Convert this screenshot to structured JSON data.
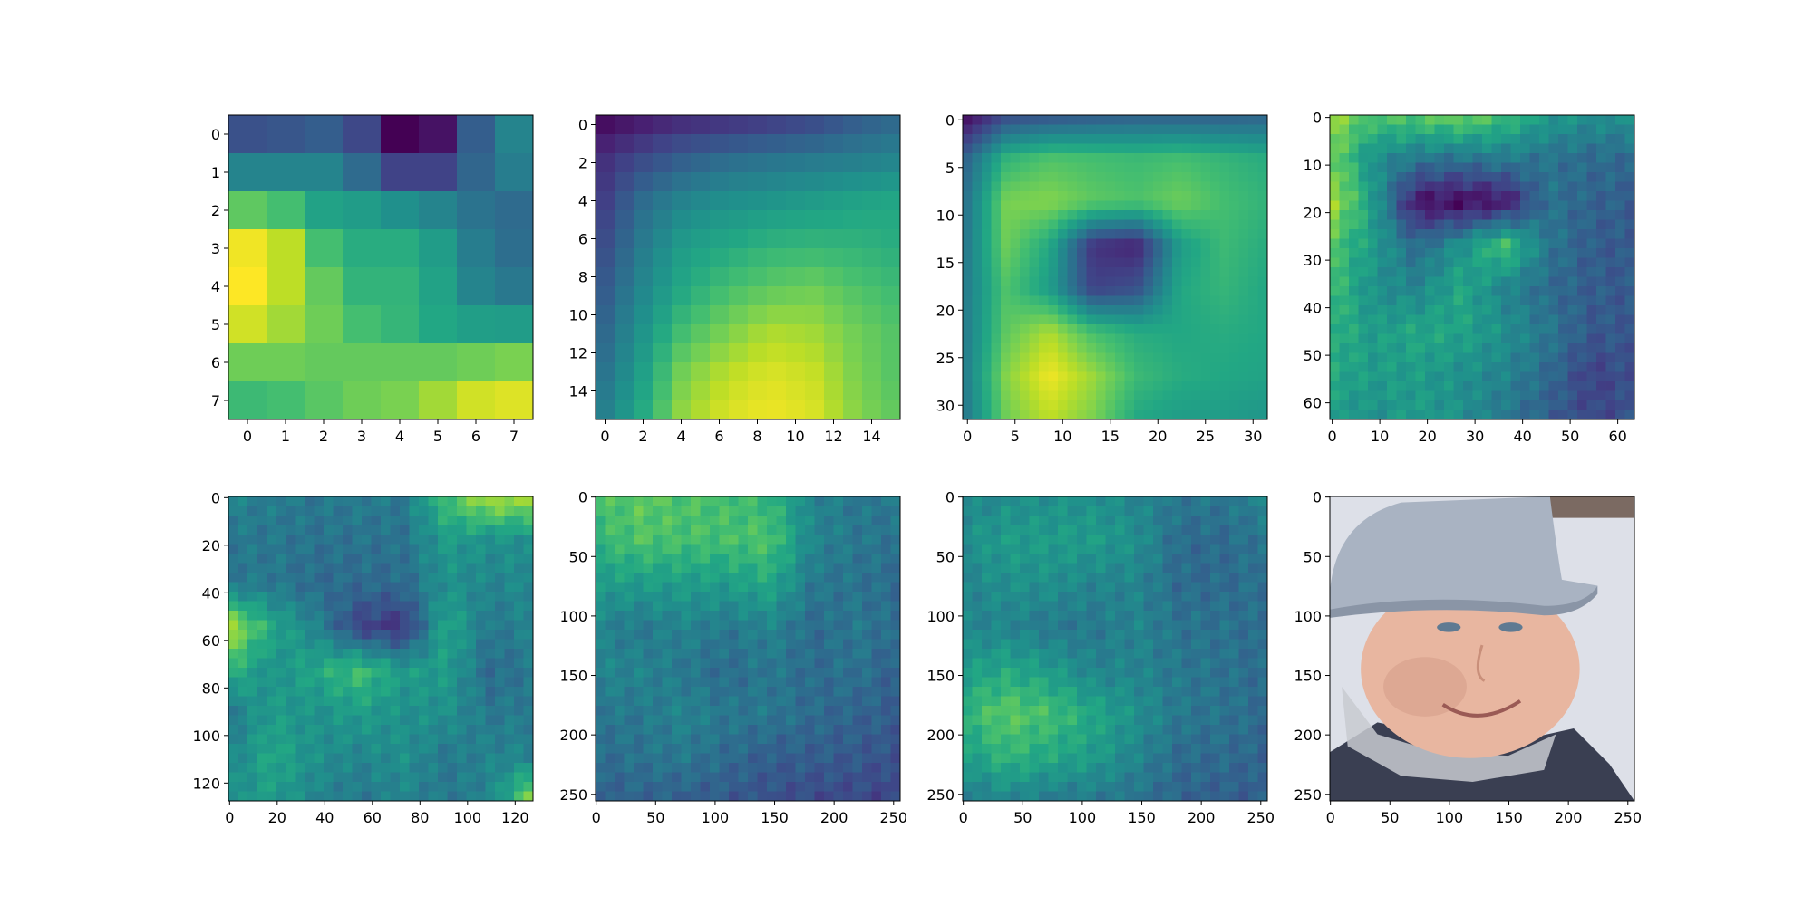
{
  "figure": {
    "colormap": "viridis",
    "background": "#ffffff"
  },
  "chart_data": [
    {
      "type": "heatmap",
      "resolution": 8,
      "xticks": [
        0,
        1,
        2,
        3,
        4,
        5,
        6,
        7
      ],
      "yticks": [
        0,
        1,
        2,
        3,
        4,
        5,
        6,
        7
      ],
      "grid": false,
      "values": [
        [
          0.25,
          0.27,
          0.3,
          0.22,
          0.0,
          0.05,
          0.3,
          0.45
        ],
        [
          0.45,
          0.45,
          0.45,
          0.35,
          0.2,
          0.2,
          0.33,
          0.42
        ],
        [
          0.75,
          0.7,
          0.58,
          0.55,
          0.5,
          0.45,
          0.38,
          0.35
        ],
        [
          0.98,
          0.9,
          0.7,
          0.62,
          0.62,
          0.55,
          0.42,
          0.36
        ],
        [
          1.0,
          0.9,
          0.76,
          0.65,
          0.65,
          0.58,
          0.45,
          0.4
        ],
        [
          0.93,
          0.86,
          0.78,
          0.7,
          0.66,
          0.6,
          0.56,
          0.55
        ],
        [
          0.78,
          0.78,
          0.76,
          0.76,
          0.76,
          0.76,
          0.78,
          0.8
        ],
        [
          0.68,
          0.7,
          0.74,
          0.78,
          0.8,
          0.86,
          0.93,
          0.95
        ]
      ]
    },
    {
      "type": "heatmap",
      "resolution": 16,
      "xticks": [
        0,
        2,
        4,
        6,
        8,
        10,
        12,
        14
      ],
      "yticks": [
        0,
        2,
        4,
        6,
        8,
        10,
        12,
        14
      ],
      "grid": false,
      "peaks": [
        {
          "r": 0,
          "c": 0,
          "v": 0.0
        }
      ],
      "pattern": "corner-gradient",
      "coarse": [
        [
          0.0,
          0.05,
          0.1,
          0.12,
          0.15,
          0.2,
          0.28,
          0.33
        ],
        [
          0.12,
          0.22,
          0.3,
          0.35,
          0.38,
          0.4,
          0.42,
          0.45
        ],
        [
          0.15,
          0.35,
          0.45,
          0.5,
          0.52,
          0.55,
          0.58,
          0.6
        ],
        [
          0.2,
          0.4,
          0.55,
          0.6,
          0.65,
          0.66,
          0.65,
          0.62
        ],
        [
          0.25,
          0.45,
          0.6,
          0.7,
          0.75,
          0.78,
          0.72,
          0.68
        ],
        [
          0.3,
          0.5,
          0.7,
          0.8,
          0.88,
          0.86,
          0.78,
          0.72
        ],
        [
          0.35,
          0.55,
          0.8,
          0.9,
          0.95,
          0.92,
          0.8,
          0.72
        ],
        [
          0.4,
          0.6,
          0.85,
          0.95,
          0.98,
          0.95,
          0.82,
          0.75
        ]
      ]
    },
    {
      "type": "heatmap",
      "resolution": 32,
      "xticks": [
        0,
        5,
        10,
        15,
        20,
        25,
        30
      ],
      "yticks": [
        0,
        5,
        10,
        15,
        20,
        25,
        30
      ],
      "grid": false,
      "coarse": [
        [
          0.0,
          0.22,
          0.25,
          0.28,
          0.3,
          0.3,
          0.3,
          0.32
        ],
        [
          0.3,
          0.65,
          0.72,
          0.7,
          0.68,
          0.7,
          0.66,
          0.62
        ],
        [
          0.35,
          0.8,
          0.82,
          0.75,
          0.72,
          0.78,
          0.7,
          0.65
        ],
        [
          0.38,
          0.78,
          0.6,
          0.15,
          0.1,
          0.55,
          0.68,
          0.62
        ],
        [
          0.4,
          0.72,
          0.55,
          0.2,
          0.25,
          0.6,
          0.66,
          0.6
        ],
        [
          0.4,
          0.75,
          0.88,
          0.7,
          0.62,
          0.6,
          0.62,
          0.6
        ],
        [
          0.4,
          0.82,
          0.98,
          0.85,
          0.68,
          0.62,
          0.6,
          0.58
        ],
        [
          0.38,
          0.78,
          0.9,
          0.8,
          0.6,
          0.55,
          0.55,
          0.52
        ]
      ]
    },
    {
      "type": "heatmap",
      "resolution": 64,
      "xticks": [
        0,
        10,
        20,
        30,
        40,
        50,
        60
      ],
      "yticks": [
        0,
        10,
        20,
        30,
        40,
        50,
        60
      ],
      "grid": false,
      "coarse": [
        [
          0.85,
          0.72,
          0.75,
          0.8,
          0.7,
          0.55,
          0.5,
          0.5
        ],
        [
          0.8,
          0.5,
          0.4,
          0.38,
          0.42,
          0.38,
          0.35,
          0.35
        ],
        [
          0.9,
          0.55,
          0.05,
          0.02,
          0.05,
          0.38,
          0.32,
          0.3
        ],
        [
          0.72,
          0.55,
          0.35,
          0.5,
          0.72,
          0.4,
          0.3,
          0.28
        ],
        [
          0.7,
          0.5,
          0.45,
          0.6,
          0.45,
          0.35,
          0.3,
          0.28
        ],
        [
          0.65,
          0.55,
          0.6,
          0.58,
          0.5,
          0.4,
          0.28,
          0.28
        ],
        [
          0.6,
          0.55,
          0.55,
          0.5,
          0.45,
          0.35,
          0.2,
          0.25
        ],
        [
          0.55,
          0.5,
          0.55,
          0.5,
          0.4,
          0.3,
          0.22,
          0.25
        ]
      ]
    },
    {
      "type": "heatmap",
      "resolution": 128,
      "xticks": [
        0,
        20,
        40,
        60,
        80,
        100,
        120
      ],
      "yticks": [
        0,
        20,
        40,
        60,
        80,
        100,
        120
      ],
      "grid": false,
      "coarse": [
        [
          0.45,
          0.42,
          0.4,
          0.42,
          0.4,
          0.7,
          0.9,
          0.85
        ],
        [
          0.4,
          0.4,
          0.38,
          0.38,
          0.38,
          0.55,
          0.5,
          0.5
        ],
        [
          0.4,
          0.4,
          0.35,
          0.35,
          0.35,
          0.5,
          0.45,
          0.48
        ],
        [
          0.9,
          0.6,
          0.45,
          0.2,
          0.15,
          0.6,
          0.4,
          0.45
        ],
        [
          0.65,
          0.5,
          0.6,
          0.7,
          0.55,
          0.55,
          0.35,
          0.4
        ],
        [
          0.4,
          0.55,
          0.5,
          0.55,
          0.5,
          0.5,
          0.4,
          0.42
        ],
        [
          0.45,
          0.6,
          0.5,
          0.45,
          0.5,
          0.4,
          0.45,
          0.45
        ],
        [
          0.5,
          0.55,
          0.45,
          0.4,
          0.45,
          0.4,
          0.45,
          0.85
        ]
      ]
    },
    {
      "type": "heatmap",
      "resolution": 256,
      "xticks": [
        0,
        50,
        100,
        150,
        200,
        250
      ],
      "yticks": [
        0,
        50,
        100,
        150,
        200,
        250
      ],
      "grid": false,
      "coarse": [
        [
          0.7,
          0.75,
          0.72,
          0.7,
          0.65,
          0.45,
          0.4,
          0.4
        ],
        [
          0.65,
          0.72,
          0.7,
          0.7,
          0.72,
          0.45,
          0.4,
          0.38
        ],
        [
          0.55,
          0.55,
          0.55,
          0.55,
          0.6,
          0.4,
          0.38,
          0.35
        ],
        [
          0.45,
          0.4,
          0.45,
          0.4,
          0.45,
          0.35,
          0.4,
          0.35
        ],
        [
          0.45,
          0.45,
          0.4,
          0.35,
          0.4,
          0.35,
          0.38,
          0.3
        ],
        [
          0.4,
          0.4,
          0.45,
          0.4,
          0.4,
          0.35,
          0.32,
          0.3
        ],
        [
          0.35,
          0.38,
          0.4,
          0.35,
          0.3,
          0.3,
          0.28,
          0.25
        ],
        [
          0.3,
          0.32,
          0.3,
          0.28,
          0.25,
          0.22,
          0.22,
          0.2
        ]
      ]
    },
    {
      "type": "heatmap",
      "resolution": 256,
      "xticks": [
        0,
        50,
        100,
        150,
        200,
        250
      ],
      "yticks": [
        0,
        50,
        100,
        150,
        200,
        250
      ],
      "grid": false,
      "coarse": [
        [
          0.45,
          0.48,
          0.5,
          0.5,
          0.45,
          0.4,
          0.4,
          0.45
        ],
        [
          0.5,
          0.55,
          0.55,
          0.55,
          0.5,
          0.35,
          0.35,
          0.4
        ],
        [
          0.45,
          0.5,
          0.5,
          0.45,
          0.45,
          0.35,
          0.35,
          0.38
        ],
        [
          0.45,
          0.45,
          0.4,
          0.4,
          0.45,
          0.38,
          0.38,
          0.35
        ],
        [
          0.55,
          0.6,
          0.55,
          0.45,
          0.45,
          0.4,
          0.38,
          0.35
        ],
        [
          0.65,
          0.75,
          0.7,
          0.6,
          0.5,
          0.4,
          0.38,
          0.35
        ],
        [
          0.55,
          0.65,
          0.6,
          0.55,
          0.45,
          0.35,
          0.35,
          0.32
        ],
        [
          0.4,
          0.45,
          0.4,
          0.4,
          0.38,
          0.32,
          0.3,
          0.3
        ]
      ]
    },
    {
      "type": "image",
      "resolution": 256,
      "xticks": [
        0,
        50,
        100,
        150,
        200,
        250
      ],
      "yticks": [
        0,
        50,
        100,
        150,
        200,
        250
      ],
      "grid": false,
      "colors": {
        "background": "#dde0e8",
        "hat": "#a9b3c2",
        "hat_shadow": "#8a95a6",
        "face": "#e8b6a0",
        "face_shadow": "#c98f7a",
        "collar": "#3a3f52",
        "chain": "#c8cad0",
        "eyes": "#5f7a92",
        "mouth": "#9a5a55"
      }
    }
  ]
}
